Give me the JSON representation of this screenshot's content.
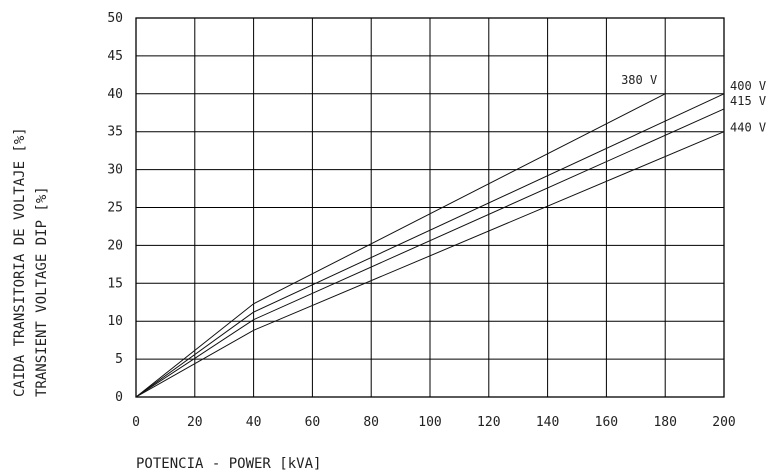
{
  "chart_data": {
    "type": "line",
    "title": "",
    "xlabel": "POTENCIA - POWER [kVA]",
    "ylabel_lines": [
      "CAIDA TRANSITORIA DE VOLTAJE [%]",
      "TRANSIENT VOLTAGE DIP [%]"
    ],
    "xlim": [
      0,
      200
    ],
    "ylim": [
      0,
      50
    ],
    "x_ticks": [
      0,
      20,
      40,
      60,
      80,
      100,
      120,
      140,
      160,
      180,
      200
    ],
    "y_ticks": [
      0,
      5,
      10,
      15,
      20,
      25,
      30,
      35,
      40,
      45,
      50
    ],
    "grid": true,
    "legend": "inline-labels",
    "series": [
      {
        "name": "380 V",
        "x": [
          0,
          40,
          180
        ],
        "y": [
          0,
          12.3,
          40
        ]
      },
      {
        "name": "400 V",
        "x": [
          0,
          40,
          200
        ],
        "y": [
          0,
          11.2,
          40
        ]
      },
      {
        "name": "415 V",
        "x": [
          0,
          40,
          200
        ],
        "y": [
          0,
          10.2,
          38
        ]
      },
      {
        "name": "440 V",
        "x": [
          0,
          40,
          200
        ],
        "y": [
          0,
          8.8,
          35
        ]
      }
    ]
  }
}
